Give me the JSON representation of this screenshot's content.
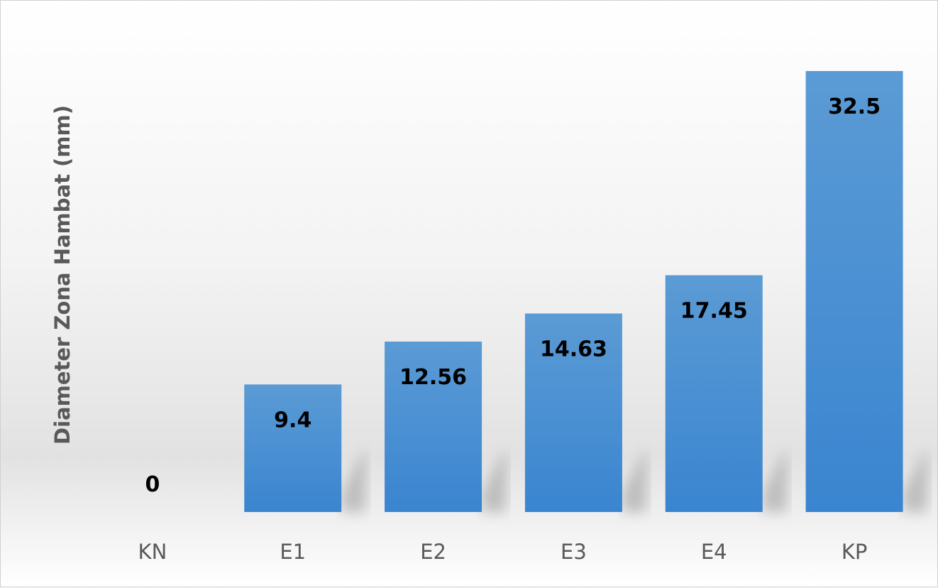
{
  "chart_data": {
    "type": "bar",
    "categories": [
      "KN",
      "E1",
      "E2",
      "E3",
      "E4",
      "KP"
    ],
    "values": [
      0,
      9.4,
      12.56,
      14.63,
      17.45,
      32.5
    ],
    "data_labels": [
      "0",
      "9.4",
      "12.56",
      "14.63",
      "17.45",
      "32.5"
    ],
    "ylabel": "Diameter Zona Hambat (mm)",
    "xlabel": "",
    "title": "",
    "ylim": [
      0,
      32.5
    ],
    "grid": false,
    "legend": "none",
    "bar_color": "#3a85d0",
    "bar_color_light": "#5b9bd5"
  }
}
